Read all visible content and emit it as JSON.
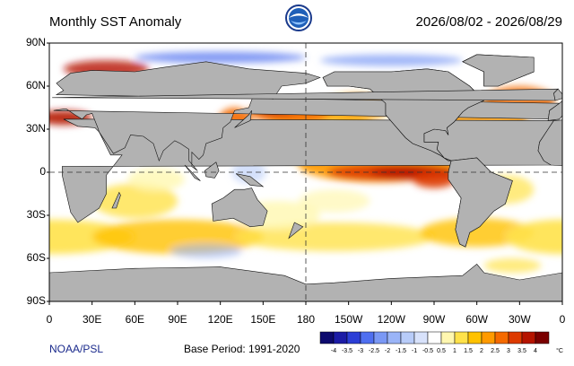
{
  "header": {
    "title": "Monthly SST Anomaly",
    "date_range": "2026/08/02 - 2026/08/29"
  },
  "map": {
    "lat_labels": [
      "90N",
      "60N",
      "30N",
      "0",
      "30S",
      "60S",
      "90S"
    ],
    "lon_labels": [
      "0",
      "30E",
      "60E",
      "90E",
      "120E",
      "150E",
      "180",
      "150W",
      "120W",
      "90W",
      "60W",
      "30W",
      "0"
    ]
  },
  "footer": {
    "source": "NOAA/PSL",
    "base_period": "Base Period: 1991-2020"
  },
  "colorbar": {
    "ticks": [
      -4,
      -3.5,
      -3,
      -2.5,
      -2,
      -1.5,
      -1,
      -0.5,
      0.5,
      1,
      1.5,
      2,
      2.5,
      3,
      3.5,
      4
    ],
    "unit": "°C",
    "colors": [
      "#0d0a6e",
      "#1c1ca6",
      "#2c3ed6",
      "#4f6ff0",
      "#7a98f5",
      "#9ab4f7",
      "#b8ccf9",
      "#d8e2fb",
      "#ffffff",
      "#fff7b0",
      "#ffe24a",
      "#ffc200",
      "#ff9a00",
      "#f56a00",
      "#dd3a00",
      "#b51400",
      "#7a0000"
    ]
  }
}
